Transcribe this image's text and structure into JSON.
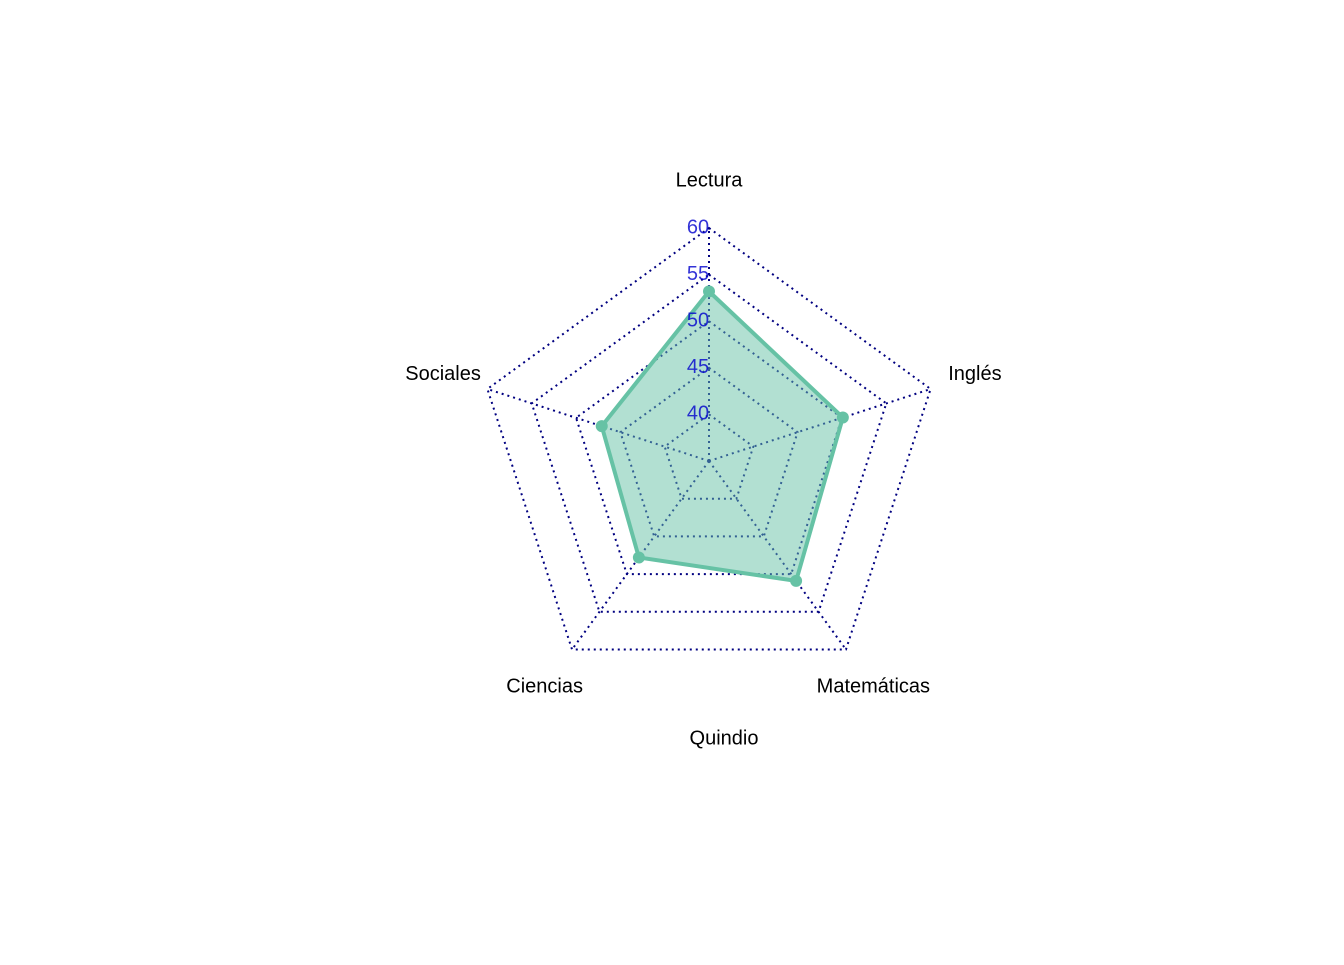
{
  "chart_data": {
    "type": "radar",
    "title": "Quindio",
    "categories": [
      "Lectura",
      "Inglés",
      "Matemáticas",
      "Ciencias",
      "Sociales"
    ],
    "series": [
      {
        "color": "#66c2a5",
        "values": [
          53.2,
          50.1,
          50.9,
          47.8,
          47.1
        ]
      }
    ],
    "rlim": [
      35,
      60
    ],
    "rticks": [
      40,
      45,
      50,
      55,
      60
    ],
    "tick_color": "#0000cd",
    "grid_color": "#000080",
    "grid": true
  }
}
